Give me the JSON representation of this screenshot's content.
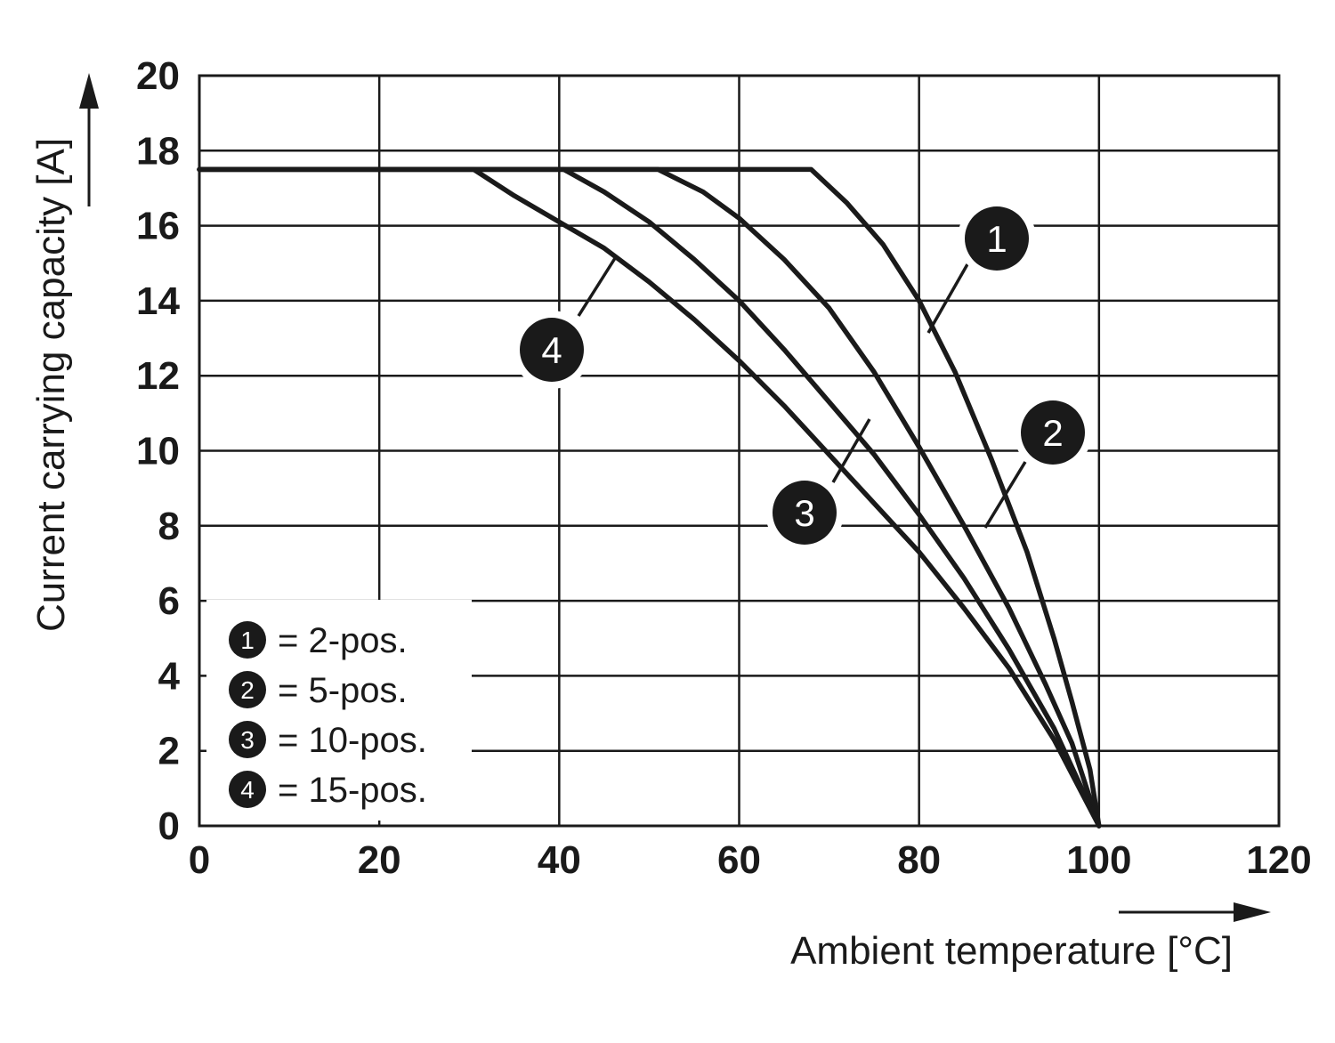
{
  "chart_data": {
    "type": "line",
    "xlabel": "Ambient temperature [°C]",
    "ylabel": "Current carrying capacity [A]",
    "xlim": [
      0,
      120
    ],
    "ylim": [
      0,
      20
    ],
    "x_ticks": [
      0,
      20,
      40,
      60,
      80,
      100,
      120
    ],
    "y_ticks": [
      0,
      2,
      4,
      6,
      8,
      10,
      12,
      14,
      16,
      18,
      20
    ],
    "grid": true,
    "legend_position": "bottom-left",
    "series": [
      {
        "name": "1",
        "legend_text": "= 2-pos.",
        "points": [
          [
            0,
            17.5
          ],
          [
            68,
            17.5
          ],
          [
            72,
            16.6
          ],
          [
            76,
            15.5
          ],
          [
            80,
            14.0
          ],
          [
            84,
            12.1
          ],
          [
            88,
            9.8
          ],
          [
            92,
            7.3
          ],
          [
            95,
            5.0
          ],
          [
            97,
            3.3
          ],
          [
            99,
            1.5
          ],
          [
            100,
            0
          ]
        ]
      },
      {
        "name": "2",
        "legend_text": "= 5-pos.",
        "points": [
          [
            0,
            17.5
          ],
          [
            51,
            17.5
          ],
          [
            56,
            16.9
          ],
          [
            60,
            16.2
          ],
          [
            65,
            15.1
          ],
          [
            70,
            13.8
          ],
          [
            75,
            12.1
          ],
          [
            80,
            10.1
          ],
          [
            85,
            8.0
          ],
          [
            90,
            5.8
          ],
          [
            94,
            3.8
          ],
          [
            97,
            2.2
          ],
          [
            100,
            0
          ]
        ]
      },
      {
        "name": "3",
        "legend_text": "= 10-pos.",
        "points": [
          [
            0,
            17.5
          ],
          [
            40.5,
            17.5
          ],
          [
            45,
            16.9
          ],
          [
            50,
            16.1
          ],
          [
            55,
            15.1
          ],
          [
            60,
            14.0
          ],
          [
            65,
            12.7
          ],
          [
            70,
            11.3
          ],
          [
            75,
            9.9
          ],
          [
            80,
            8.3
          ],
          [
            85,
            6.6
          ],
          [
            90,
            4.7
          ],
          [
            95,
            2.6
          ],
          [
            100,
            0
          ]
        ]
      },
      {
        "name": "4",
        "legend_text": "= 15-pos.",
        "points": [
          [
            0,
            17.5
          ],
          [
            30.5,
            17.5
          ],
          [
            35,
            16.8
          ],
          [
            40,
            16.1
          ],
          [
            45,
            15.4
          ],
          [
            50,
            14.5
          ],
          [
            55,
            13.5
          ],
          [
            60,
            12.4
          ],
          [
            65,
            11.2
          ],
          [
            70,
            9.9
          ],
          [
            75,
            8.6
          ],
          [
            80,
            7.3
          ],
          [
            85,
            5.8
          ],
          [
            90,
            4.2
          ],
          [
            95,
            2.3
          ],
          [
            100,
            0
          ]
        ]
      }
    ]
  }
}
